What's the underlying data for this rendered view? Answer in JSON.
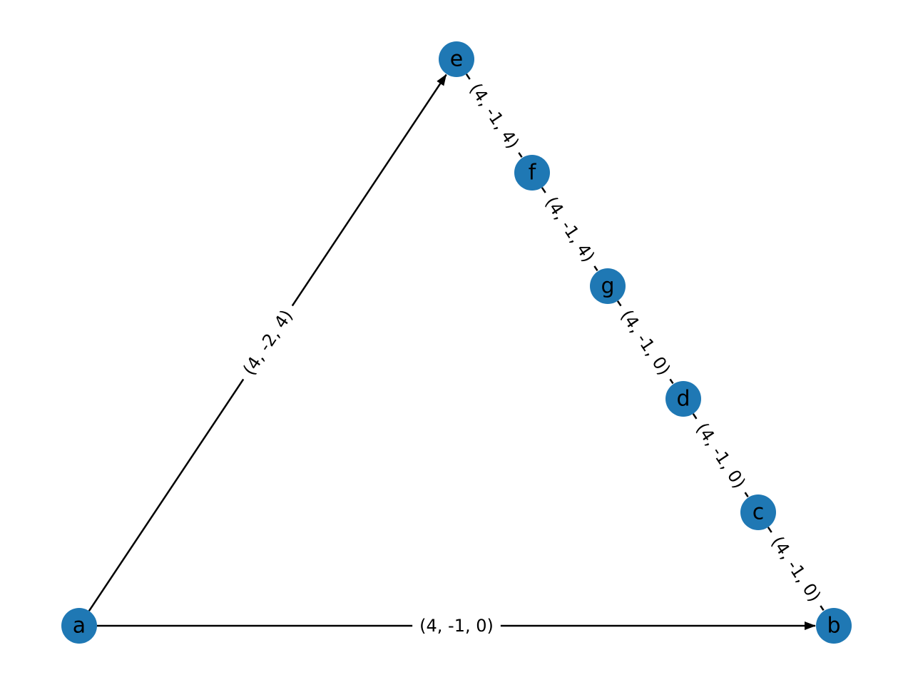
{
  "graph": {
    "node_color": "#1f78b4",
    "edge_color": "#000000",
    "nodes": [
      {
        "id": "a",
        "label": "a"
      },
      {
        "id": "e",
        "label": "e"
      },
      {
        "id": "f",
        "label": "f"
      },
      {
        "id": "g",
        "label": "g"
      },
      {
        "id": "d",
        "label": "d"
      },
      {
        "id": "c",
        "label": "c"
      },
      {
        "id": "b",
        "label": "b"
      }
    ],
    "edges": [
      {
        "from": "a",
        "to": "e",
        "label": "(4, -2, 4)",
        "directed": true
      },
      {
        "from": "a",
        "to": "b",
        "label": "(4, -1, 0)",
        "directed": true
      },
      {
        "from": "e",
        "to": "f",
        "label": "(4, -1, 4)",
        "directed": false
      },
      {
        "from": "f",
        "to": "g",
        "label": "(4, -1, 4)",
        "directed": false
      },
      {
        "from": "g",
        "to": "d",
        "label": "(4, -1, 0)",
        "directed": false
      },
      {
        "from": "d",
        "to": "c",
        "label": "(4, -1, 0)",
        "directed": false
      },
      {
        "from": "c",
        "to": "b",
        "label": "(4, -1, 0)",
        "directed": false
      }
    ]
  }
}
